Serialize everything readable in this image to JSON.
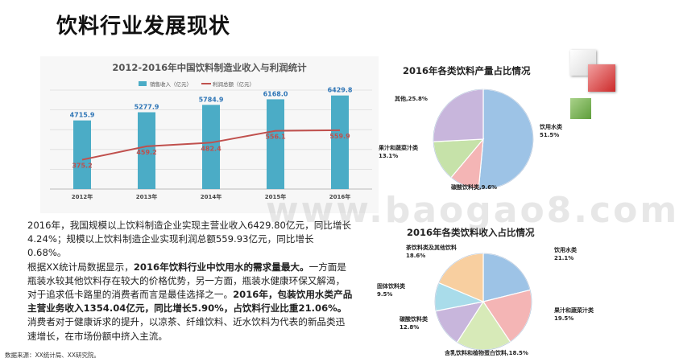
{
  "page": {
    "title": "饮料行业发展现状",
    "watermark": "www.baogao8.com",
    "source": "数据来源：XX统计局、XX研究院。"
  },
  "body": {
    "p1": "2016年，我国规模以上饮料制造企业实现主营业收入6429.80亿元，同比增长4.24%；规模以上饮料制造企业实现利润总额559.93亿元，同比增长0.68%。",
    "p2_a": "根据XX统计局数据显示，",
    "p2_b": "2016年饮料行业中饮用水的需求量最大。",
    "p2_c": "一方面是瓶装水较其他饮料存在较大的价格优势，另一方面，瓶装水健康环保又解渴，对于追求低卡路里的消费者而言是最佳选择之一。",
    "p2_d": "2016年，包装饮用水类产品主营业务收入1354.04亿元，同比增长5.90%，占饮料行业比重21.06%。",
    "p2_e": "消费者对于健康诉求的提升，以凉茶、纤维饮料、近水饮料为代表的新品类迅速增长，在市场份额中挤入主流。"
  },
  "chart_data": [
    {
      "type": "bar",
      "title": "2012-2016年中国饮料制造业收入与利润统计",
      "categories": [
        "2012年",
        "2013年",
        "2014年",
        "2015年",
        "2016年"
      ],
      "series": [
        {
          "name": "销售收入（亿元）",
          "type": "bar",
          "color": "#4bacc6",
          "values": [
            4715.9,
            5277.9,
            5784.9,
            6168.0,
            6429.8
          ],
          "labels": [
            "4715.9",
            "5277.9",
            "5784.9",
            "6168.0",
            "6429.8"
          ]
        },
        {
          "name": "利润总额（亿元）",
          "type": "line",
          "color": "#c0504d",
          "values": [
            375.2,
            459.2,
            482.4,
            556.1,
            559.9
          ],
          "labels": [
            "375.2",
            "459.2",
            "482.4",
            "556.1",
            "559.9"
          ]
        }
      ],
      "legend": "top",
      "grid": true
    },
    {
      "type": "pie",
      "title": "2016年各类饮料产量占比情况",
      "slices": [
        {
          "label": "饮用水类,51.5%",
          "value": 51.5,
          "color": "#9dc3e6"
        },
        {
          "label": "碳酸饮料类,9.6%",
          "value": 9.6,
          "color": "#f4b5b5"
        },
        {
          "label": "果汁和蔬菜汁类,13.1%",
          "value": 13.1,
          "color": "#c6e2a9"
        },
        {
          "label": "其他,25.8%",
          "value": 25.8,
          "color": "#c8b6dc"
        }
      ]
    },
    {
      "type": "pie",
      "title": "2016年各类饮料收入占比情况",
      "slices": [
        {
          "label": "饮用水类,21.1%",
          "value": 21.1,
          "color": "#9dc3e6"
        },
        {
          "label": "果汁和蔬菜汁类,19.5%",
          "value": 19.5,
          "color": "#f4b5b5"
        },
        {
          "label": "含乳饮料和植物蛋白饮料,18.5%",
          "value": 18.5,
          "color": "#d7eab8"
        },
        {
          "label": "碳酸饮料类,12.8%",
          "value": 12.8,
          "color": "#c8b6dc"
        },
        {
          "label": "固体饮料类,9.5%",
          "value": 9.5,
          "color": "#a9dcea"
        },
        {
          "label": "茶饮料类及其他饮料,18.6%",
          "value": 18.6,
          "color": "#f8cfa0"
        }
      ]
    }
  ]
}
